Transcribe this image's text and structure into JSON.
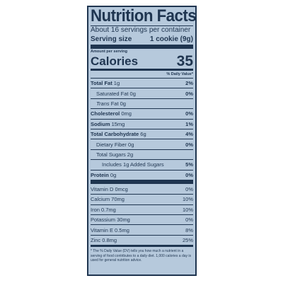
{
  "title": "Nutrition Facts",
  "servings": "About 16 servings per container",
  "serving_size": {
    "label": "Serving size",
    "value": "1 cookie (9g)"
  },
  "amount_per_serving": "Amount per serving",
  "calories": {
    "label": "Calories",
    "value": "35"
  },
  "dv_header": "% Daily Value*",
  "nutrients": [
    {
      "label": "Total Fat",
      "amount": " 1g",
      "dv": "2%"
    },
    {
      "label": "Saturated Fat",
      "amount": " 0g",
      "dv": "0%"
    },
    {
      "label": "Trans",
      "amount": " Fat 0g",
      "dv": ""
    },
    {
      "label": "Cholesterol",
      "amount": " 0mg",
      "dv": "0%"
    },
    {
      "label": "Sodium",
      "amount": " 15mg",
      "dv": "1%"
    },
    {
      "label": "Total Carbohydrate",
      "amount": " 6g",
      "dv": "4%"
    },
    {
      "label": "Dietary Fiber",
      "amount": " 0g",
      "dv": "0%"
    },
    {
      "label": "Total Sugars",
      "amount": " 2g",
      "dv": ""
    },
    {
      "label": "Includes 1g Added Sugars",
      "amount": "",
      "dv": "5%"
    },
    {
      "label": "Protein",
      "amount": " 0g",
      "dv": "0%"
    }
  ],
  "vitamins": [
    {
      "label": "Vitamin D 0mcg",
      "dv": "0%"
    },
    {
      "label": "Calcium 70mg",
      "dv": "10%"
    },
    {
      "label": "Iron 0.7mg",
      "dv": "10%"
    },
    {
      "label": "Potassium 30mg",
      "dv": "0%"
    },
    {
      "label": "Vitamin E 0.5mg",
      "dv": "8%"
    },
    {
      "label": "Zinc 0.8mg",
      "dv": "25%"
    }
  ],
  "footnote": "* The % Daily Value (DV) tells you how much a nutrient in a serving of food contributes to a daily diet. 1,000 calories a day is used for general nutrition advice."
}
